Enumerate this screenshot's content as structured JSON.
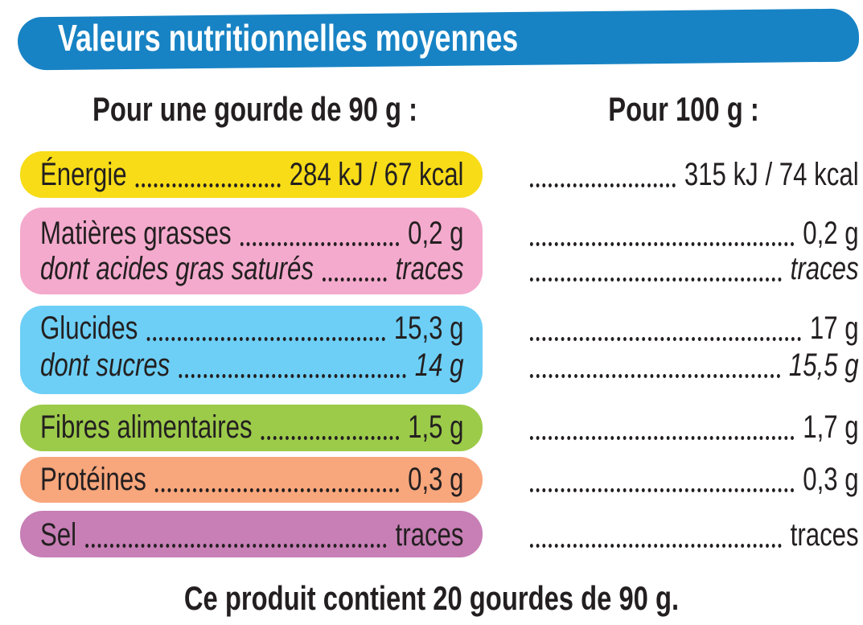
{
  "header": {
    "title": "Valeurs nutritionnelles moyennes"
  },
  "columns": {
    "portion": "Pour une gourde de 90 g :",
    "per100": "Pour 100 g :"
  },
  "table": {
    "rows": [
      {
        "label": "Énergie",
        "portion": "284 kJ / 67 kcal",
        "per100": "315 kJ / 74 kcal"
      },
      {
        "label": "Matières grasses",
        "portion": "0,2 g",
        "per100": "0,2 g",
        "sub": {
          "label": "dont acides gras saturés",
          "portion": "traces",
          "per100": "traces"
        }
      },
      {
        "label": "Glucides",
        "portion": "15,3 g",
        "per100": "17 g",
        "sub": {
          "label": "dont sucres",
          "portion": "14 g",
          "per100": "15,5 g"
        }
      },
      {
        "label": "Fibres alimentaires",
        "portion": "1,5 g",
        "per100": "1,7 g"
      },
      {
        "label": "Protéines",
        "portion": "0,3 g",
        "per100": "0,3 g"
      },
      {
        "label": "Sel",
        "portion": "traces",
        "per100": "traces"
      }
    ]
  },
  "footer": "Ce produit contient 20 gourdes de 90 g."
}
